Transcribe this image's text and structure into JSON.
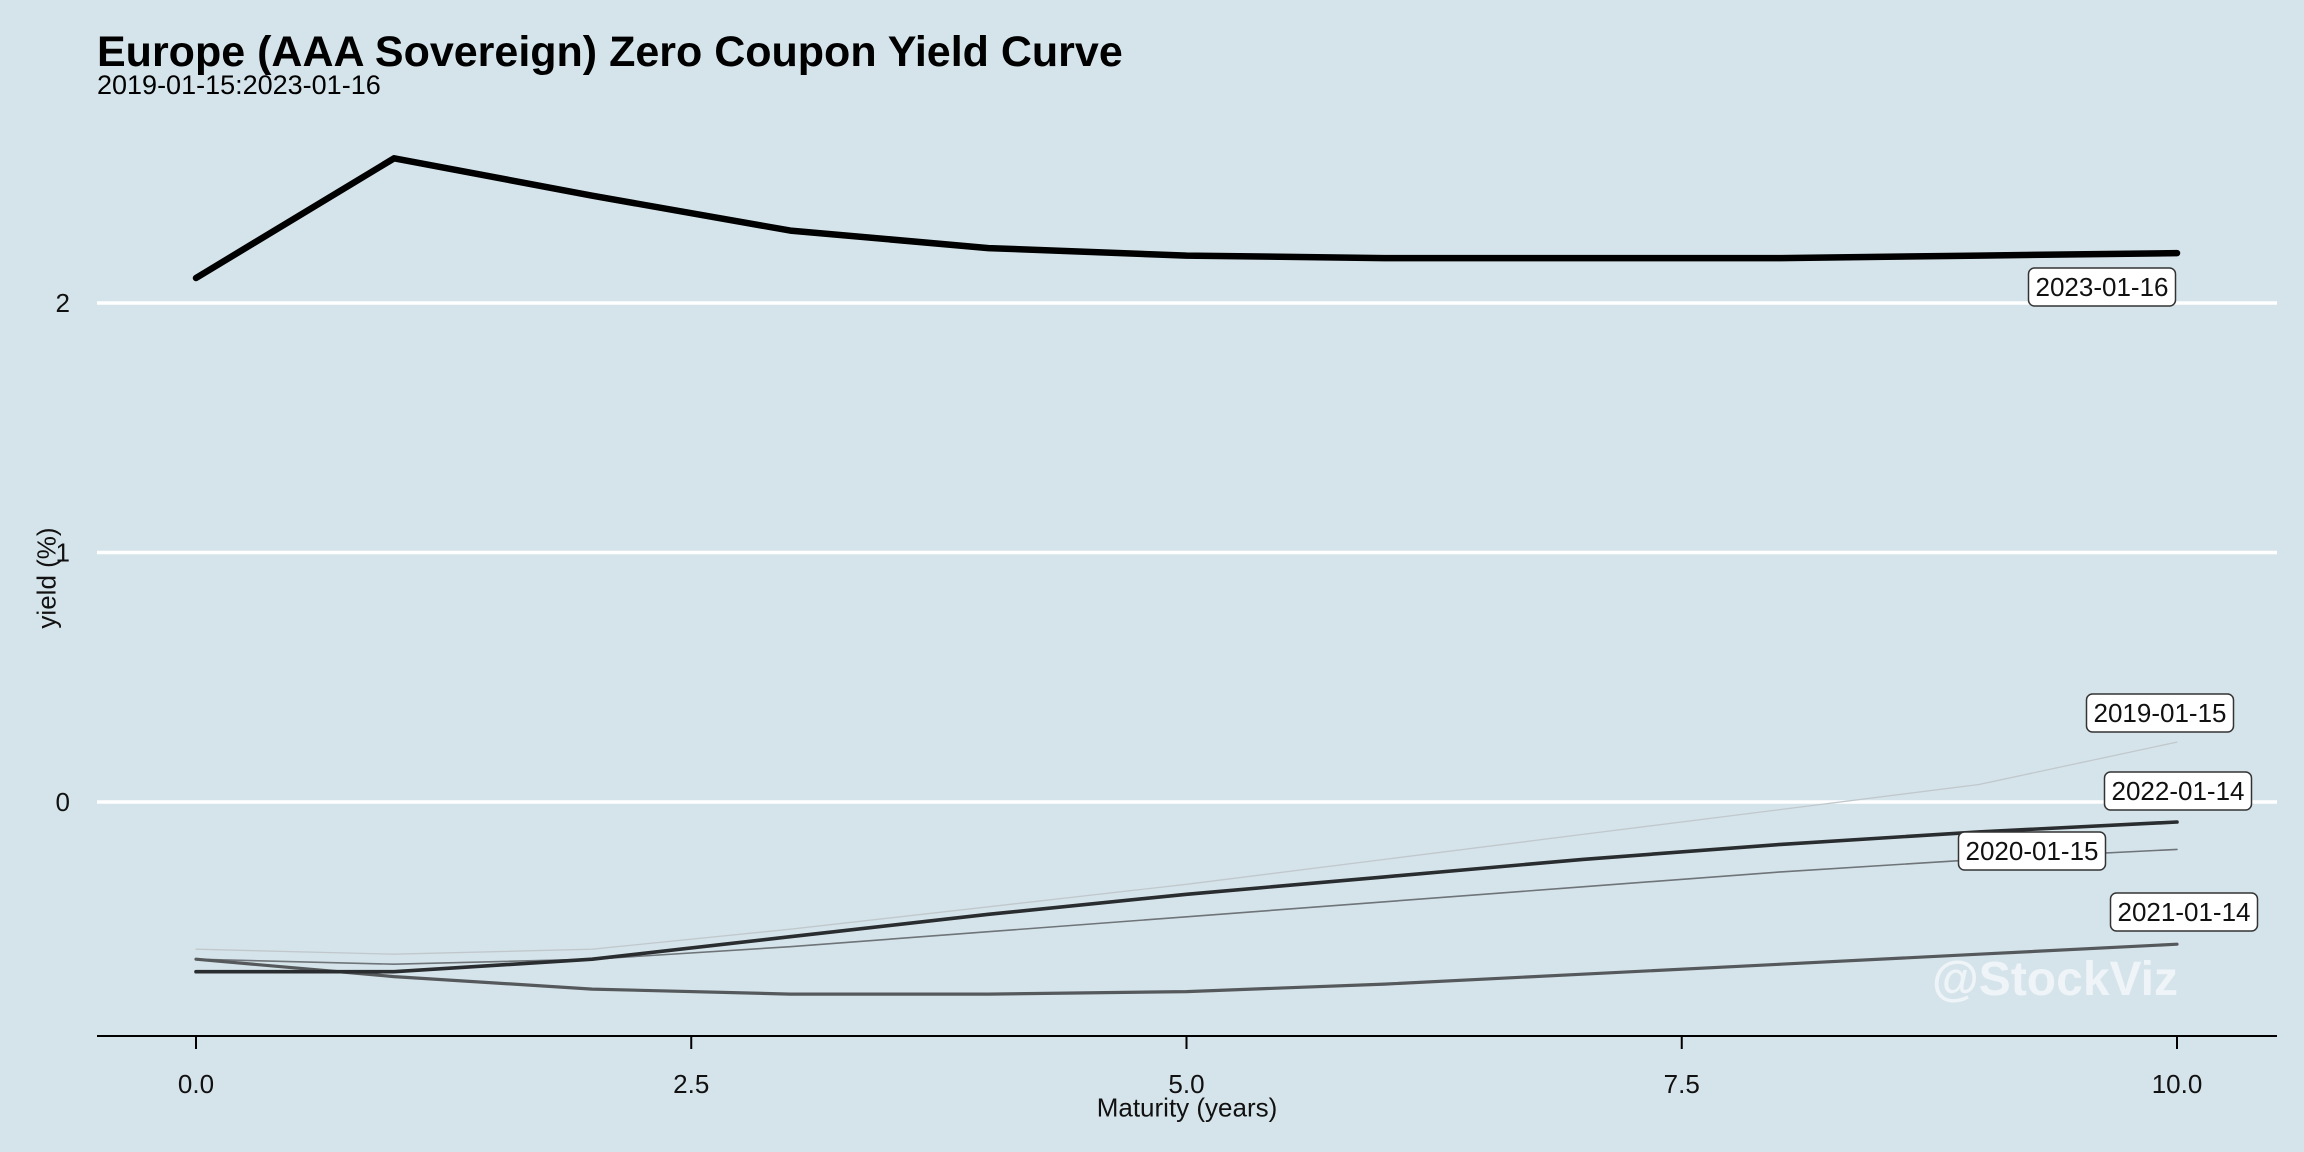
{
  "chart_data": {
    "type": "line",
    "title": "Europe (AAA Sovereign) Zero Coupon Yield Curve",
    "subtitle": "2019-01-15:2023-01-16",
    "xlabel": "Maturity (years)",
    "ylabel": "yield (%)",
    "xlim": [
      -0.5,
      10.5
    ],
    "ylim": [
      -0.94,
      2.55
    ],
    "x_ticks": [
      0,
      2.5,
      5,
      7.5,
      10
    ],
    "x_tick_labels": [
      "0.0",
      "2.5",
      "5.0",
      "7.5",
      "10.0"
    ],
    "y_ticks": [
      0,
      1,
      2
    ],
    "y_tick_labels": [
      "0",
      "1",
      "2"
    ],
    "grid": "horizontal major only",
    "x": [
      0,
      1,
      2,
      3,
      4,
      5,
      6,
      7,
      8,
      9,
      10
    ],
    "series": [
      {
        "name": "2019-01-15",
        "color": "#c0c8cc",
        "width": 1.3,
        "values": [
          -0.59,
          -0.61,
          -0.59,
          -0.51,
          -0.42,
          -0.33,
          -0.23,
          -0.13,
          -0.03,
          0.07,
          0.24
        ]
      },
      {
        "name": "2020-01-15",
        "color": "#6e7478",
        "width": 1.6,
        "values": [
          -0.63,
          -0.65,
          -0.63,
          -0.58,
          -0.52,
          -0.46,
          -0.4,
          -0.34,
          -0.28,
          -0.23,
          -0.19
        ]
      },
      {
        "name": "2021-01-14",
        "color": "#55595c",
        "width": 3.2,
        "values": [
          -0.63,
          -0.7,
          -0.75,
          -0.77,
          -0.77,
          -0.76,
          -0.73,
          -0.69,
          -0.65,
          -0.61,
          -0.57
        ]
      },
      {
        "name": "2022-01-14",
        "color": "#2a2d2f",
        "width": 3.6,
        "values": [
          -0.68,
          -0.68,
          -0.63,
          -0.54,
          -0.45,
          -0.37,
          -0.3,
          -0.23,
          -0.17,
          -0.12,
          -0.08
        ]
      },
      {
        "name": "2023-01-16",
        "color": "#000000",
        "width": 6.5,
        "values": [
          2.1,
          2.58,
          2.43,
          2.29,
          2.22,
          2.19,
          2.18,
          2.18,
          2.18,
          2.19,
          2.2
        ]
      }
    ],
    "watermark": "@StockViz"
  },
  "colors": {
    "background": "#d5e4eb",
    "gridline": "#ffffff",
    "axis": "#000000"
  }
}
